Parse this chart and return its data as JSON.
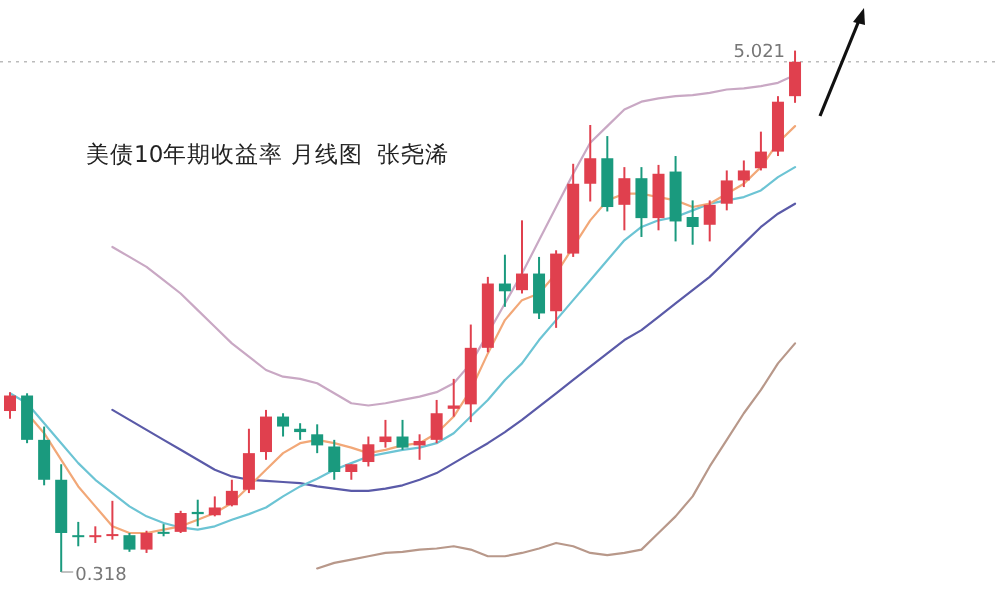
{
  "chart_data": {
    "type": "candlestick",
    "title": "美债10年期收益率 月线图  张尧浠",
    "grid": false,
    "marker": "none",
    "line_style": "solid",
    "categories": [
      null,
      null,
      null,
      null,
      null,
      null,
      null,
      null,
      null,
      null,
      null,
      null,
      null,
      null,
      null,
      null,
      null,
      null,
      null,
      null,
      null,
      null,
      null,
      null,
      null,
      null,
      null,
      null,
      null,
      null,
      null,
      null,
      null,
      null,
      null,
      null,
      null,
      null,
      null,
      null,
      null,
      null,
      null,
      null,
      null,
      null,
      null
    ],
    "ohlc": [
      [
        1.77,
        1.94,
        1.7,
        1.91
      ],
      [
        1.91,
        1.93,
        1.48,
        1.51
      ],
      [
        1.51,
        1.63,
        1.1,
        1.15
      ],
      [
        1.15,
        1.29,
        0.318,
        0.67
      ],
      [
        0.65,
        0.77,
        0.55,
        0.64
      ],
      [
        0.64,
        0.73,
        0.58,
        0.65
      ],
      [
        0.65,
        0.96,
        0.61,
        0.66
      ],
      [
        0.65,
        0.67,
        0.5,
        0.52
      ],
      [
        0.52,
        0.69,
        0.49,
        0.67
      ],
      [
        0.68,
        0.75,
        0.64,
        0.67
      ],
      [
        0.68,
        0.87,
        0.67,
        0.85
      ],
      [
        0.86,
        0.97,
        0.73,
        0.84
      ],
      [
        0.83,
        1.0,
        0.82,
        0.9
      ],
      [
        0.92,
        1.15,
        0.91,
        1.05
      ],
      [
        1.06,
        1.61,
        1.03,
        1.39
      ],
      [
        1.4,
        1.78,
        1.33,
        1.72
      ],
      [
        1.72,
        1.75,
        1.54,
        1.63
      ],
      [
        1.61,
        1.66,
        1.51,
        1.58
      ],
      [
        1.56,
        1.65,
        1.39,
        1.46
      ],
      [
        1.45,
        1.51,
        1.15,
        1.22
      ],
      [
        1.22,
        1.29,
        1.15,
        1.29
      ],
      [
        1.31,
        1.54,
        1.27,
        1.47
      ],
      [
        1.49,
        1.69,
        1.44,
        1.54
      ],
      [
        1.54,
        1.69,
        1.42,
        1.44
      ],
      [
        1.46,
        1.56,
        1.33,
        1.5
      ],
      [
        1.51,
        1.87,
        1.48,
        1.75
      ],
      [
        1.79,
        2.06,
        1.72,
        1.82
      ],
      [
        1.83,
        2.55,
        1.67,
        2.34
      ],
      [
        2.34,
        2.98,
        2.3,
        2.92
      ],
      [
        2.92,
        3.18,
        2.71,
        2.85
      ],
      [
        2.86,
        3.49,
        2.83,
        3.01
      ],
      [
        3.01,
        3.16,
        2.6,
        2.65
      ],
      [
        2.67,
        3.22,
        2.52,
        3.19
      ],
      [
        3.19,
        4.0,
        3.16,
        3.82
      ],
      [
        3.82,
        4.35,
        3.66,
        4.05
      ],
      [
        4.05,
        4.25,
        3.57,
        3.61
      ],
      [
        3.63,
        3.97,
        3.4,
        3.87
      ],
      [
        3.87,
        3.97,
        3.34,
        3.51
      ],
      [
        3.51,
        3.99,
        3.4,
        3.91
      ],
      [
        3.93,
        4.07,
        3.3,
        3.48
      ],
      [
        3.52,
        3.67,
        3.27,
        3.43
      ],
      [
        3.45,
        3.67,
        3.3,
        3.63
      ],
      [
        3.64,
        3.94,
        3.58,
        3.85
      ],
      [
        3.85,
        4.03,
        3.79,
        3.94
      ],
      [
        3.96,
        4.29,
        3.94,
        4.11
      ],
      [
        4.11,
        4.61,
        4.07,
        4.56
      ],
      [
        4.61,
        5.021,
        4.55,
        4.92
      ]
    ],
    "colors": [
      "#e0404e",
      "#1a9a7e",
      "#1a9a7e",
      "#1a9a7e",
      "#1a9a7e",
      "#e0404e",
      "#e0404e",
      "#1a9a7e",
      "#e0404e",
      "#1a9a7e",
      "#e0404e",
      "#1a9a7e",
      "#e0404e",
      "#e0404e",
      "#e0404e",
      "#e0404e",
      "#1a9a7e",
      "#1a9a7e",
      "#1a9a7e",
      "#1a9a7e",
      "#e0404e",
      "#e0404e",
      "#e0404e",
      "#1a9a7e",
      "#e0404e",
      "#e0404e",
      "#e0404e",
      "#e0404e",
      "#e0404e",
      "#1a9a7e",
      "#e0404e",
      "#1a9a7e",
      "#e0404e",
      "#e0404e",
      "#e0404e",
      "#1a9a7e",
      "#e0404e",
      "#1a9a7e",
      "#e0404e",
      "#1a9a7e",
      "#1a9a7e",
      "#e0404e",
      "#e0404e",
      "#e0404e",
      "#e0404e",
      "#e0404e",
      "#e0404e"
    ],
    "series": [
      {
        "type": "line",
        "color": "#c9a8c4",
        "values": [
          null,
          null,
          null,
          null,
          null,
          null,
          3.25,
          3.16,
          3.07,
          2.95,
          2.83,
          2.68,
          2.53,
          2.38,
          2.26,
          2.14,
          2.08,
          2.06,
          2.02,
          1.93,
          1.84,
          1.82,
          1.84,
          1.87,
          1.9,
          1.94,
          2.02,
          2.2,
          null,
          2.74,
          3.01,
          3.31,
          3.61,
          3.91,
          4.19,
          4.34,
          4.49,
          4.56,
          4.59,
          4.61,
          4.62,
          4.64,
          4.67,
          4.68,
          4.7,
          4.73,
          4.8
        ]
      },
      {
        "type": "line",
        "color": "#5a5aa8",
        "values": [
          null,
          null,
          null,
          null,
          null,
          null,
          1.78,
          1.69,
          1.6,
          1.51,
          1.42,
          1.33,
          1.24,
          1.18,
          1.15,
          1.14,
          1.13,
          1.12,
          1.09,
          1.07,
          1.05,
          1.05,
          1.07,
          1.1,
          1.15,
          1.21,
          1.3,
          1.39,
          1.48,
          1.58,
          1.69,
          1.81,
          1.93,
          2.05,
          2.17,
          2.29,
          2.41,
          2.5,
          2.62,
          2.74,
          2.86,
          2.98,
          3.13,
          3.28,
          3.43,
          3.55,
          3.64
        ]
      },
      {
        "type": "line",
        "color": "#6cc4d4",
        "values": [
          1.93,
          1.84,
          1.66,
          1.48,
          1.3,
          1.15,
          1.03,
          0.91,
          0.82,
          0.76,
          0.72,
          0.7,
          0.73,
          0.79,
          0.84,
          0.9,
          1.0,
          1.09,
          1.16,
          1.24,
          1.3,
          1.36,
          1.39,
          1.42,
          1.44,
          1.48,
          1.57,
          1.72,
          1.87,
          2.05,
          2.2,
          2.41,
          2.59,
          2.77,
          2.95,
          3.13,
          3.31,
          3.43,
          3.49,
          3.52,
          3.58,
          3.64,
          3.67,
          3.7,
          3.76,
          3.88,
          3.97
        ]
      },
      {
        "type": "line",
        "color": "#f2a878",
        "values": [
          null,
          1.75,
          1.57,
          1.33,
          1.09,
          0.91,
          0.73,
          0.67,
          0.67,
          0.7,
          0.73,
          0.79,
          0.85,
          0.94,
          1.09,
          1.24,
          1.39,
          1.48,
          1.51,
          1.48,
          1.44,
          1.39,
          1.42,
          1.46,
          1.48,
          1.57,
          1.72,
          1.96,
          2.29,
          2.59,
          2.77,
          2.83,
          3.01,
          3.25,
          3.49,
          3.67,
          3.73,
          3.73,
          3.7,
          3.67,
          3.61,
          3.64,
          3.73,
          3.82,
          3.97,
          4.19,
          4.34
        ]
      },
      {
        "type": "line",
        "color": "#b8988a",
        "values": [
          null,
          null,
          null,
          null,
          null,
          null,
          null,
          null,
          null,
          null,
          null,
          null,
          null,
          null,
          null,
          null,
          null,
          null,
          0.35,
          0.4,
          0.43,
          0.46,
          0.49,
          0.5,
          0.52,
          0.53,
          0.55,
          0.52,
          0.46,
          0.46,
          0.49,
          0.53,
          0.58,
          0.55,
          0.49,
          0.47,
          0.49,
          0.52,
          0.67,
          0.82,
          1.0,
          1.27,
          1.51,
          1.75,
          1.96,
          2.2,
          2.38
        ]
      }
    ],
    "ref_lines": [
      {
        "axis": "y",
        "value": 4.92,
        "color": "#bbbbbb",
        "line_style": "dotted"
      }
    ],
    "annotations": [
      "5.021",
      "0.318"
    ]
  }
}
